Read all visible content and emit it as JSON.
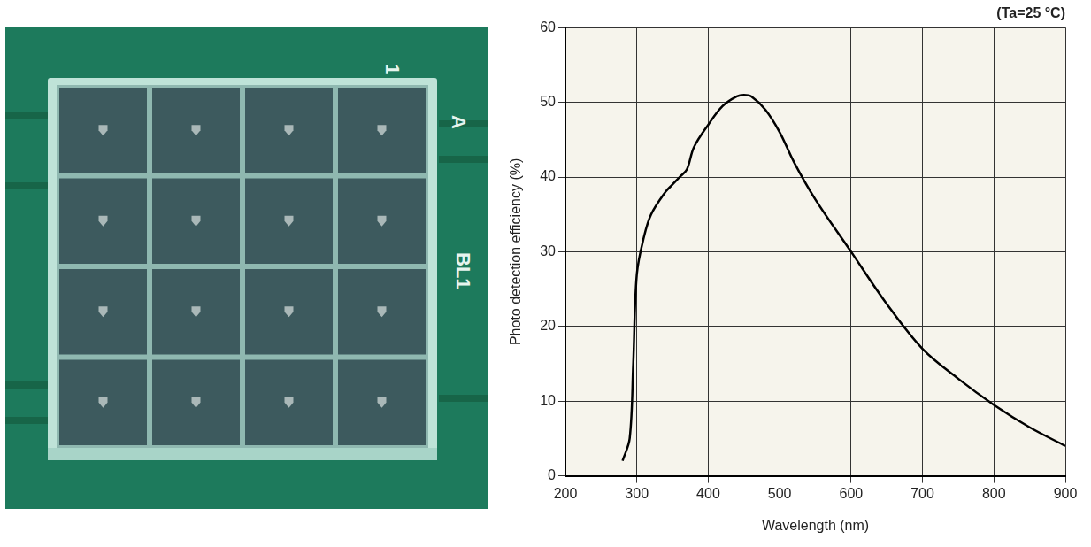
{
  "chart_data": {
    "type": "line",
    "annotation": "(Ta=25 °C)",
    "x_label": "Wavelength (nm)",
    "y_label": "Photo detection efficiency (%)",
    "x": [
      280,
      290,
      295,
      300,
      310,
      320,
      340,
      350,
      360,
      370,
      380,
      400,
      420,
      440,
      450,
      460,
      480,
      500,
      520,
      550,
      600,
      650,
      700,
      750,
      800,
      850,
      900
    ],
    "values": [
      2,
      5,
      15,
      27,
      32,
      35,
      38,
      39,
      40,
      41,
      44,
      47,
      49.5,
      50.8,
      51,
      50.8,
      49,
      46,
      42,
      37,
      30,
      23,
      17,
      13,
      9.5,
      6.5,
      4
    ],
    "color": "#000000",
    "xlim": [
      200,
      900
    ],
    "xticks": [
      200,
      300,
      400,
      500,
      600,
      700,
      800,
      900
    ],
    "ylim": [
      0,
      60
    ],
    "yticks": [
      0,
      10,
      20,
      30,
      40,
      50,
      60
    ],
    "grid": true
  },
  "photo": {
    "board_labels": [
      "1",
      "A",
      "BL1"
    ]
  }
}
